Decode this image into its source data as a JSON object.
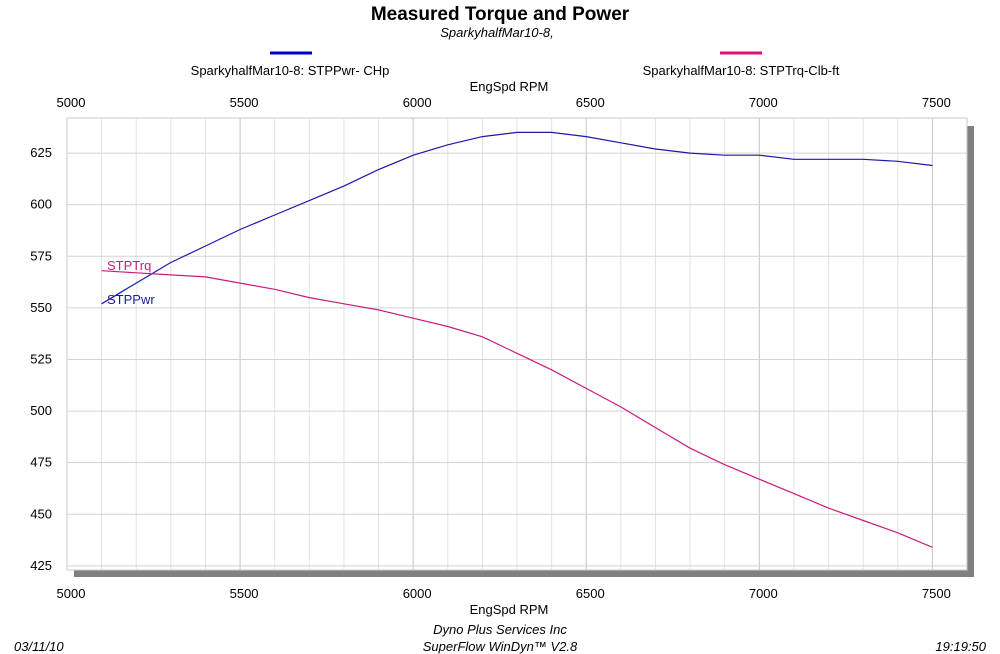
{
  "chart_data": {
    "type": "line",
    "title": "Measured Torque and Power",
    "subtitle": "SparkyhalfMar10-8,",
    "xlabel": "EngSpd  RPM",
    "xlim": [
      5000,
      7600
    ],
    "ylim": [
      423,
      642
    ],
    "x_ticks": [
      5000,
      5500,
      6000,
      6500,
      7000,
      7500
    ],
    "y_ticks": [
      425,
      450,
      475,
      500,
      525,
      550,
      575,
      600,
      625
    ],
    "grid": true,
    "legend_position": "top",
    "series": [
      {
        "name": "SparkyhalfMar10-8: STPPwr- CHp",
        "label": "STPPwr",
        "color": "#1a1aa6",
        "legend_color": "#0000cc",
        "x": [
          5100,
          5200,
          5300,
          5400,
          5500,
          5600,
          5700,
          5800,
          5900,
          6000,
          6100,
          6200,
          6300,
          6400,
          6500,
          6600,
          6700,
          6800,
          6900,
          7000,
          7100,
          7200,
          7300,
          7400,
          7500
        ],
        "y": [
          552,
          562,
          572,
          580,
          588,
          595,
          602,
          609,
          617,
          624,
          629,
          633,
          635,
          635,
          633,
          630,
          627,
          625,
          624,
          624,
          622,
          622,
          622,
          621,
          619
        ]
      },
      {
        "name": "SparkyhalfMar10-8: STPTrq-Clb-ft",
        "label": "STPTrq",
        "color": "#cc1a80",
        "legend_color": "#dd1177",
        "x": [
          5100,
          5200,
          5300,
          5400,
          5500,
          5600,
          5700,
          5800,
          5900,
          6000,
          6100,
          6200,
          6300,
          6400,
          6500,
          6600,
          6700,
          6800,
          6900,
          7000,
          7100,
          7200,
          7300,
          7400,
          7500
        ],
        "y": [
          568,
          567,
          566,
          565,
          562,
          559,
          555,
          552,
          549,
          545,
          541,
          536,
          528,
          520,
          511,
          502,
          492,
          482,
          474,
          467,
          460,
          453,
          447,
          441,
          434
        ]
      }
    ]
  },
  "footer": {
    "date": "03/11/10",
    "company": "Dyno Plus Services Inc",
    "software": "SuperFlow WinDyn™ V2.8",
    "time": "19:19:50"
  }
}
